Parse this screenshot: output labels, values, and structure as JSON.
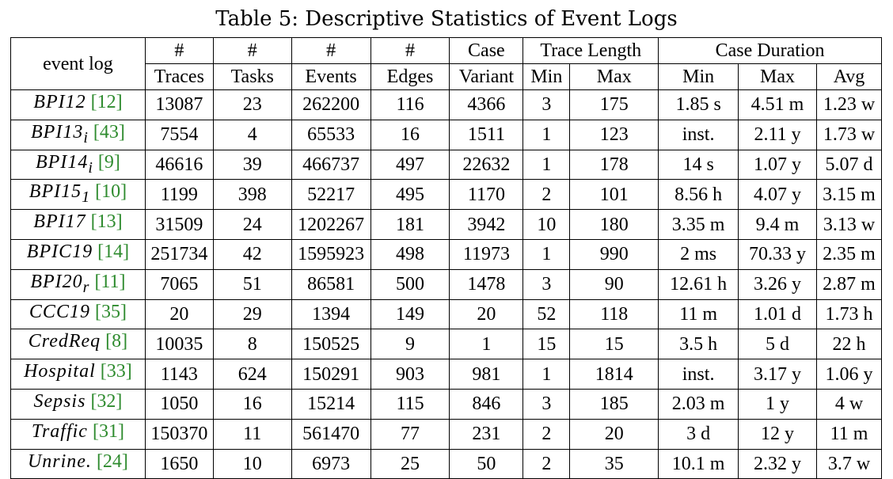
{
  "caption": "Table 5: Descriptive Statistics of Event Logs",
  "colors": {
    "citation": "#2e8b2e",
    "text": "#000000",
    "border": "#000000"
  },
  "header": {
    "event_log": "event log",
    "traces_hash": "#",
    "traces": "Traces",
    "tasks_hash": "#",
    "tasks": "Tasks",
    "events_hash": "#",
    "events": "Events",
    "edges_hash": "#",
    "edges": "Edges",
    "case": "Case",
    "variant": "Variant",
    "trace_length": "Trace Length",
    "tl_min": "Min",
    "tl_max": "Max",
    "case_duration": "Case Duration",
    "cd_min": "Min",
    "cd_max": "Max",
    "cd_avg": "Avg"
  },
  "rows": [
    {
      "name": "BPI12",
      "sub": "",
      "cite": "[12]",
      "traces": "13087",
      "tasks": "23",
      "events": "262200",
      "edges": "116",
      "variant": "4366",
      "tl_min": "3",
      "tl_max": "175",
      "cd_min": "1.85 s",
      "cd_max": "4.51 m",
      "cd_avg": "1.23 w"
    },
    {
      "name": "BPI13",
      "sub": "i",
      "cite": "[43]",
      "traces": "7554",
      "tasks": "4",
      "events": "65533",
      "edges": "16",
      "variant": "1511",
      "tl_min": "1",
      "tl_max": "123",
      "cd_min": "inst.",
      "cd_max": "2.11 y",
      "cd_avg": "1.73 w"
    },
    {
      "name": "BPI14",
      "sub": "i",
      "cite": "[9]",
      "traces": "46616",
      "tasks": "39",
      "events": "466737",
      "edges": "497",
      "variant": "22632",
      "tl_min": "1",
      "tl_max": "178",
      "cd_min": "14 s",
      "cd_max": "1.07 y",
      "cd_avg": "5.07 d"
    },
    {
      "name": "BPI15",
      "sub": "1",
      "cite": "[10]",
      "traces": "1199",
      "tasks": "398",
      "events": "52217",
      "edges": "495",
      "variant": "1170",
      "tl_min": "2",
      "tl_max": "101",
      "cd_min": "8.56 h",
      "cd_max": "4.07 y",
      "cd_avg": "3.15 m"
    },
    {
      "name": "BPI17",
      "sub": "",
      "cite": "[13]",
      "traces": "31509",
      "tasks": "24",
      "events": "1202267",
      "edges": "181",
      "variant": "3942",
      "tl_min": "10",
      "tl_max": "180",
      "cd_min": "3.35 m",
      "cd_max": "9.4 m",
      "cd_avg": "3.13 w"
    },
    {
      "name": "BPIC19",
      "sub": "",
      "cite": "[14]",
      "traces": "251734",
      "tasks": "42",
      "events": "1595923",
      "edges": "498",
      "variant": "11973",
      "tl_min": "1",
      "tl_max": "990",
      "cd_min": "2 ms",
      "cd_max": "70.33 y",
      "cd_avg": "2.35 m"
    },
    {
      "name": "BPI20",
      "sub": "r",
      "cite": "[11]",
      "traces": "7065",
      "tasks": "51",
      "events": "86581",
      "edges": "500",
      "variant": "1478",
      "tl_min": "3",
      "tl_max": "90",
      "cd_min": "12.61 h",
      "cd_max": "3.26 y",
      "cd_avg": "2.87 m"
    },
    {
      "name": "CCC19",
      "sub": "",
      "cite": "[35]",
      "traces": "20",
      "tasks": "29",
      "events": "1394",
      "edges": "149",
      "variant": "20",
      "tl_min": "52",
      "tl_max": "118",
      "cd_min": "11 m",
      "cd_max": "1.01 d",
      "cd_avg": "1.73 h"
    },
    {
      "name": "CredReq",
      "sub": "",
      "cite": "[8]",
      "traces": "10035",
      "tasks": "8",
      "events": "150525",
      "edges": "9",
      "variant": "1",
      "tl_min": "15",
      "tl_max": "15",
      "cd_min": "3.5 h",
      "cd_max": "5 d",
      "cd_avg": "22 h"
    },
    {
      "name": "Hospital",
      "sub": "",
      "cite": "[33]",
      "traces": "1143",
      "tasks": "624",
      "events": "150291",
      "edges": "903",
      "variant": "981",
      "tl_min": "1",
      "tl_max": "1814",
      "cd_min": "inst.",
      "cd_max": "3.17 y",
      "cd_avg": "1.06 y"
    },
    {
      "name": "Sepsis",
      "sub": "",
      "cite": "[32]",
      "traces": "1050",
      "tasks": "16",
      "events": "15214",
      "edges": "115",
      "variant": "846",
      "tl_min": "3",
      "tl_max": "185",
      "cd_min": "2.03 m",
      "cd_max": "1 y",
      "cd_avg": "4 w"
    },
    {
      "name": "Traffic",
      "sub": "",
      "cite": "[31]",
      "traces": "150370",
      "tasks": "11",
      "events": "561470",
      "edges": "77",
      "variant": "231",
      "tl_min": "2",
      "tl_max": "20",
      "cd_min": "3 d",
      "cd_max": "12 y",
      "cd_avg": "11 m"
    },
    {
      "name": "Unrine.",
      "sub": "",
      "cite": "[24]",
      "traces": "1650",
      "tasks": "10",
      "events": "6973",
      "edges": "25",
      "variant": "50",
      "tl_min": "2",
      "tl_max": "35",
      "cd_min": "10.1 m",
      "cd_max": "2.32 y",
      "cd_avg": "3.7 w"
    }
  ]
}
